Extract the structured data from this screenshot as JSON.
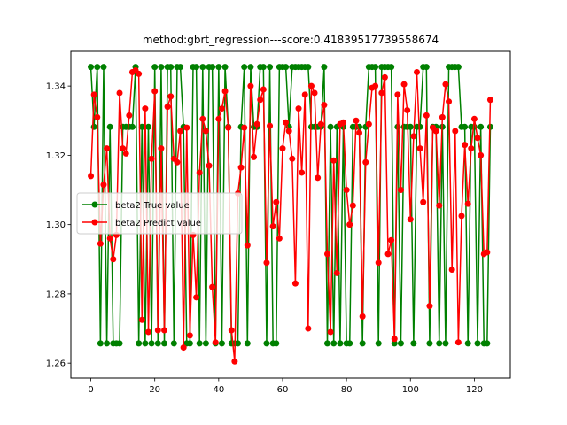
{
  "chart_data": {
    "type": "line",
    "title": "method:gbrt_regression---score:0.41839517739558674",
    "xlabel": "",
    "ylabel": "",
    "xlim": [
      -6.25,
      131.25
    ],
    "ylim": [
      1.2557,
      1.35
    ],
    "x_ticks": [
      0,
      20,
      40,
      60,
      80,
      100,
      120
    ],
    "y_ticks": [
      1.26,
      1.28,
      1.3,
      1.32,
      1.34
    ],
    "grid": false,
    "legend_position": "center-left",
    "series": [
      {
        "name": "beta2 True value",
        "color": "#008000",
        "values": [
          1.3455,
          1.3282,
          1.3455,
          1.2657,
          1.3455,
          1.2657,
          1.3282,
          1.2657,
          1.2657,
          1.2657,
          1.3282,
          1.3282,
          1.3282,
          1.3282,
          1.3455,
          1.2657,
          1.3282,
          1.2657,
          1.3282,
          1.2657,
          1.3455,
          1.2657,
          1.3455,
          1.2657,
          1.3455,
          1.3455,
          1.2657,
          1.3455,
          1.3455,
          1.3282,
          1.2657,
          1.2657,
          1.3455,
          1.3455,
          1.2657,
          1.3455,
          1.2657,
          1.3455,
          1.3455,
          1.2657,
          1.3455,
          1.2657,
          1.3455,
          1.3282,
          1.2657,
          1.2657,
          1.2657,
          1.3282,
          1.3455,
          1.2657,
          1.3455,
          1.3282,
          1.3282,
          1.3455,
          1.3455,
          1.2657,
          1.3455,
          1.2657,
          1.2657,
          1.3455,
          1.3455,
          1.3455,
          1.3282,
          1.3455,
          1.3455,
          1.3455,
          1.3455,
          1.3455,
          1.3455,
          1.3282,
          1.3282,
          1.3282,
          1.3282,
          1.3455,
          1.2657,
          1.3282,
          1.2657,
          1.3282,
          1.2657,
          1.3282,
          1.2657,
          1.2657,
          1.3282,
          1.3282,
          1.3282,
          1.2657,
          1.3282,
          1.3455,
          1.3455,
          1.3455,
          1.2657,
          1.3455,
          1.3455,
          1.3455,
          1.3455,
          1.2657,
          1.3282,
          1.2657,
          1.3282,
          1.3282,
          1.3282,
          1.2657,
          1.3282,
          1.3282,
          1.3455,
          1.3455,
          1.2657,
          1.3282,
          1.3282,
          1.2657,
          1.3282,
          1.2657,
          1.3455,
          1.3455,
          1.3455,
          1.3455,
          1.3282,
          1.3282,
          1.2657,
          1.3282,
          1.3282,
          1.2657,
          1.3282,
          1.2657,
          1.2657,
          1.3282
        ]
      },
      {
        "name": "beta2 Predict value",
        "color": "#ff0000",
        "values": [
          1.314,
          1.3375,
          1.331,
          1.2945,
          1.3115,
          1.322,
          1.296,
          1.29,
          1.297,
          1.338,
          1.322,
          1.3205,
          1.3315,
          1.344,
          1.3445,
          1.3435,
          1.2725,
          1.3335,
          1.269,
          1.319,
          1.3385,
          1.2695,
          1.322,
          1.2695,
          1.334,
          1.337,
          1.319,
          1.318,
          1.327,
          1.2645,
          1.328,
          1.268,
          1.297,
          1.279,
          1.315,
          1.3305,
          1.327,
          1.317,
          1.282,
          1.266,
          1.3305,
          1.3335,
          1.3385,
          1.328,
          1.2695,
          1.2605,
          1.309,
          1.3165,
          1.328,
          1.294,
          1.34,
          1.3195,
          1.329,
          1.336,
          1.339,
          1.289,
          1.3285,
          1.2995,
          1.3065,
          1.296,
          1.322,
          1.3295,
          1.327,
          1.319,
          1.283,
          1.3335,
          1.315,
          1.3375,
          1.27,
          1.34,
          1.338,
          1.3135,
          1.329,
          1.3345,
          1.2915,
          1.269,
          1.3185,
          1.286,
          1.329,
          1.3295,
          1.31,
          1.3,
          1.3055,
          1.33,
          1.3265,
          1.2735,
          1.318,
          1.329,
          1.3395,
          1.34,
          1.289,
          1.338,
          1.3425,
          1.2915,
          1.2955,
          1.267,
          1.3375,
          1.31,
          1.3405,
          1.333,
          1.3015,
          1.3255,
          1.344,
          1.322,
          1.3065,
          1.3315,
          1.2765,
          1.328,
          1.327,
          1.3055,
          1.331,
          1.3405,
          1.3355,
          1.287,
          1.327,
          1.266,
          1.3025,
          1.323,
          1.306,
          1.322,
          1.3305,
          1.325,
          1.32,
          1.2915,
          1.292,
          1.336
        ]
      }
    ]
  }
}
